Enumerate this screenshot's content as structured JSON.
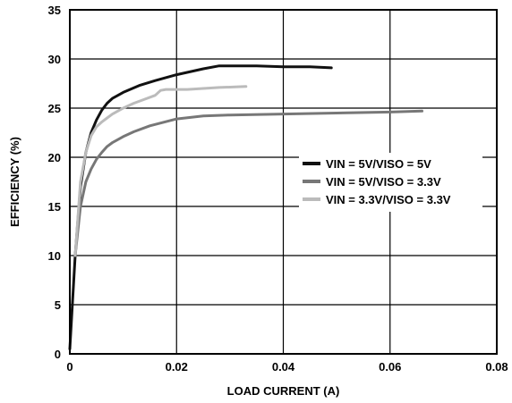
{
  "chart_data": {
    "type": "line",
    "title": "",
    "xlabel": "LOAD CURRENT (A)",
    "ylabel": "EFFICIENCY (%)",
    "xlim": [
      0,
      0.08
    ],
    "ylim": [
      0,
      35
    ],
    "xticks": [
      0,
      0.02,
      0.04,
      0.06,
      0.08
    ],
    "xtick_labels": [
      "0",
      "0.02",
      "0.04",
      "0.06",
      "0.08"
    ],
    "yticks": [
      0,
      5,
      10,
      15,
      20,
      25,
      30,
      35
    ],
    "ytick_labels": [
      "0",
      "5",
      "10",
      "15",
      "20",
      "25",
      "30",
      "35"
    ],
    "grid": true,
    "legend_position": "center-right",
    "series": [
      {
        "name": "VIN = 5V/VISO = 5V",
        "color": "#111111",
        "x": [
          0,
          0.001,
          0.002,
          0.003,
          0.004,
          0.005,
          0.006,
          0.007,
          0.008,
          0.01,
          0.013,
          0.016,
          0.02,
          0.025,
          0.028,
          0.03,
          0.035,
          0.04,
          0.045,
          0.049
        ],
        "y": [
          0.5,
          10,
          17,
          20.5,
          22.5,
          23.8,
          24.8,
          25.5,
          26,
          26.6,
          27.3,
          27.8,
          28.4,
          29.0,
          29.3,
          29.3,
          29.3,
          29.2,
          29.2,
          29.1
        ]
      },
      {
        "name": "VIN = 5V/VISO = 3.3V",
        "color": "#777777",
        "x": [
          0.001,
          0.002,
          0.003,
          0.004,
          0.005,
          0.006,
          0.007,
          0.008,
          0.01,
          0.012,
          0.015,
          0.02,
          0.025,
          0.03,
          0.04,
          0.05,
          0.06,
          0.066
        ],
        "y": [
          10,
          15,
          17.5,
          18.8,
          19.8,
          20.5,
          21.1,
          21.5,
          22.1,
          22.6,
          23.2,
          23.9,
          24.2,
          24.3,
          24.4,
          24.5,
          24.6,
          24.7
        ]
      },
      {
        "name": "VIN = 3.3V/VISO = 3.3V",
        "color": "#bbbbbb",
        "x": [
          0.001,
          0.002,
          0.003,
          0.004,
          0.005,
          0.006,
          0.007,
          0.008,
          0.01,
          0.012,
          0.014,
          0.016,
          0.017,
          0.018,
          0.02,
          0.022,
          0.025,
          0.028,
          0.033
        ],
        "y": [
          10,
          17.5,
          20.5,
          22.2,
          23.1,
          23.6,
          24.0,
          24.4,
          25.0,
          25.5,
          25.9,
          26.3,
          26.8,
          26.9,
          26.9,
          26.9,
          27.0,
          27.1,
          27.2
        ]
      }
    ]
  }
}
